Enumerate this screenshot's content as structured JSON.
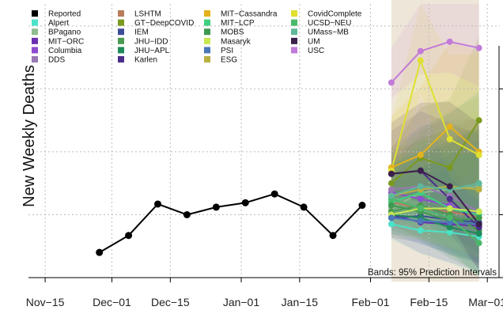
{
  "chart_data": {
    "type": "line",
    "ylabel": "New Weekly Deaths",
    "x_tick_labels": [
      "Nov−15",
      "Dec−01",
      "Dec−15",
      "Jan−01",
      "Jan−15",
      "Feb−01",
      "Feb−15",
      "Mar−01"
    ],
    "x_ticks": [
      "2020-11-15",
      "2020-12-01",
      "2020-12-15",
      "2021-01-01",
      "2021-01-15",
      "2021-02-01",
      "2021-02-15",
      "2021-03-01"
    ],
    "xlim": [
      "2020-11-11",
      "2021-03-04"
    ],
    "y_axis_note": "y tick labels are cut off at the right edge of the image; values below are in relative units read from the gridlines (gridline spacing = 1)",
    "ylim": [
      0,
      4.35
    ],
    "y_gridlines": [
      0,
      1,
      2,
      3,
      4
    ],
    "grid": true,
    "legend_position": "top-left",
    "annotation": "Bands: 95% Prediction Intervals",
    "reported": {
      "name": "Reported",
      "color": "#000000",
      "x": [
        "2020-11-28",
        "2020-12-05",
        "2020-12-12",
        "2020-12-19",
        "2020-12-26",
        "2021-01-02",
        "2021-01-09",
        "2021-01-16",
        "2021-01-23",
        "2021-01-30"
      ],
      "y": [
        0.4,
        0.67,
        1.17,
        1.0,
        1.12,
        1.19,
        1.33,
        1.12,
        0.67,
        1.15
      ]
    },
    "forecast_x": [
      "2021-02-06",
      "2021-02-13",
      "2021-02-20",
      "2021-02-27"
    ],
    "series": [
      {
        "name": "Alpert",
        "color": "#4be3c8",
        "values": [
          0.85,
          0.75,
          0.72,
          0.65
        ]
      },
      {
        "name": "BPagano",
        "color": "#8fbc8f",
        "values": [
          1.1,
          1.35,
          1.4,
          1.45
        ]
      },
      {
        "name": "MIT−ORC",
        "color": "#6a2fb0",
        "values": [
          1.0,
          0.88,
          0.85,
          0.82
        ]
      },
      {
        "name": "Columbia",
        "color": "#8e4bd0",
        "values": [
          1.35,
          1.25,
          1.15,
          1.0
        ]
      },
      {
        "name": "DDS",
        "color": "#9a78b4",
        "values": [
          1.4,
          1.45,
          1.3,
          1.05
        ]
      },
      {
        "name": "LSHTM",
        "color": "#b97c5c",
        "values": [
          1.2,
          1.1,
          1.05,
          0.95
        ]
      },
      {
        "name": "GT−DeepCOVID",
        "color": "#7a9a1f",
        "values": [
          1.5,
          1.9,
          1.75,
          2.5
        ]
      },
      {
        "name": "IEM",
        "color": "#3e4c9a",
        "values": [
          0.95,
          0.98,
          0.92,
          0.88
        ]
      },
      {
        "name": "JHU−IDD",
        "color": "#4a9a4f",
        "values": [
          1.05,
          1.15,
          1.0,
          0.75
        ]
      },
      {
        "name": "JHU−APL",
        "color": "#1f8a5a",
        "values": [
          1.0,
          0.95,
          0.8,
          0.7
        ]
      },
      {
        "name": "Karlen",
        "color": "#4b2d8a",
        "values": [
          1.65,
          1.7,
          1.25,
          0.8
        ]
      },
      {
        "name": "MIT−Cassandra",
        "color": "#e3b21f",
        "values": [
          1.75,
          1.95,
          2.4,
          2.0
        ]
      },
      {
        "name": "MIT−LCP",
        "color": "#3fcf7f",
        "values": [
          1.2,
          1.35,
          1.1,
          1.0
        ]
      },
      {
        "name": "MOBS",
        "color": "#3f9a4f",
        "values": [
          1.15,
          1.05,
          0.9,
          0.95
        ]
      },
      {
        "name": "Masaryk",
        "color": "#c8e84f",
        "values": [
          1.0,
          1.1,
          1.1,
          1.05
        ]
      },
      {
        "name": "PSI",
        "color": "#4a78b8",
        "values": [
          0.95,
          0.9,
          0.88,
          0.85
        ]
      },
      {
        "name": "ESG",
        "color": "#b8b03f",
        "values": [
          1.3,
          1.4,
          1.45,
          1.4
        ]
      },
      {
        "name": "CovidComplete",
        "color": "#dfe030",
        "values": [
          1.7,
          3.45,
          2.2,
          1.95
        ]
      },
      {
        "name": "UCSD−NEU",
        "color": "#4ab86a",
        "values": [
          1.25,
          1.1,
          0.95,
          0.55
        ]
      },
      {
        "name": "UMass−MB",
        "color": "#5fb89a",
        "values": [
          1.3,
          1.45,
          1.4,
          1.5
        ]
      },
      {
        "name": "UM",
        "color": "#3a1f4a",
        "values": [
          1.65,
          1.7,
          1.45,
          0.85
        ]
      },
      {
        "name": "USC",
        "color": "#c27ad8",
        "values": [
          3.1,
          3.6,
          3.75,
          3.65
        ]
      }
    ]
  }
}
